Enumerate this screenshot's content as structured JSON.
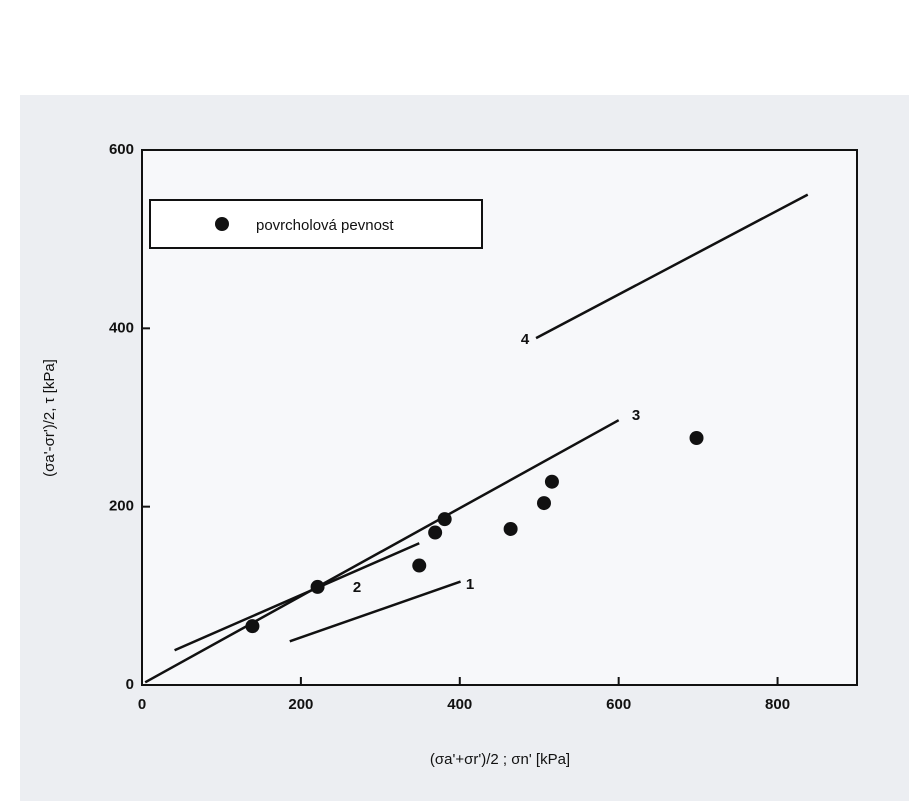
{
  "chart_data": {
    "type": "scatter",
    "x_label": "(σa'+σr')/2 ; σn' [kPa]",
    "y_label": "(σa'-σr')/2, τ [kPa]",
    "xlim": [
      0,
      900
    ],
    "ylim": [
      0,
      600
    ],
    "xticks": [
      0,
      200,
      400,
      600,
      800
    ],
    "yticks": [
      0,
      200,
      400,
      600
    ],
    "legend": "upper left",
    "series": [
      {
        "name": "povrcholová pevnost",
        "color": "#111111",
        "x": [
          139,
          221,
          349,
          369,
          381,
          464,
          506,
          516,
          698
        ],
        "values": [
          66,
          110,
          134,
          171,
          186,
          175,
          204,
          228,
          277
        ]
      }
    ],
    "lines": [
      {
        "name": "1",
        "color": "#111111",
        "x": [
          186,
          401
        ],
        "values": [
          49,
          116
        ]
      },
      {
        "name": "2",
        "color": "#111111",
        "x": [
          41,
          349
        ],
        "values": [
          39,
          159
        ]
      },
      {
        "name": "3",
        "color": "#111111",
        "x": [
          4,
          600
        ],
        "values": [
          3,
          297
        ]
      },
      {
        "name": "4",
        "color": "#111111",
        "x": [
          496,
          838
        ],
        "values": [
          389,
          550
        ]
      }
    ]
  }
}
